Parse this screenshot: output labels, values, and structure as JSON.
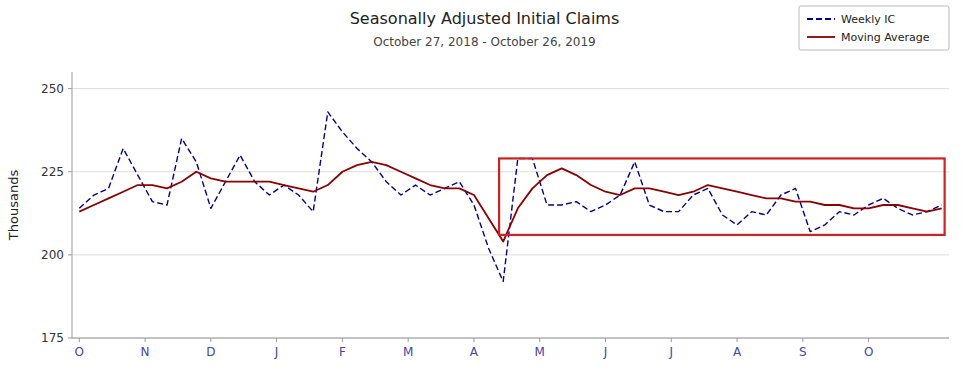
{
  "chart_data": {
    "type": "line",
    "title": "Seasonally Adjusted Initial Claims",
    "subtitle": "October 27, 2018 - October 26, 2019",
    "ylabel": "Thousands",
    "ylim": [
      175,
      255
    ],
    "yticks": [
      175,
      200,
      225,
      250
    ],
    "xlim": [
      -0.5,
      59.5
    ],
    "xticks": [
      {
        "value": 0.0,
        "label": "O"
      },
      {
        "value": 4.5,
        "label": "N"
      },
      {
        "value": 9.0,
        "label": "D"
      },
      {
        "value": 13.5,
        "label": "J"
      },
      {
        "value": 18.0,
        "label": "F"
      },
      {
        "value": 22.5,
        "label": "M"
      },
      {
        "value": 27.0,
        "label": "A"
      },
      {
        "value": 31.5,
        "label": "M"
      },
      {
        "value": 36.0,
        "label": "J"
      },
      {
        "value": 40.5,
        "label": "J"
      },
      {
        "value": 45.0,
        "label": "A"
      },
      {
        "value": 49.5,
        "label": "S"
      },
      {
        "value": 54.0,
        "label": "O"
      }
    ],
    "grid": true,
    "legend": "upper right",
    "series": [
      {
        "name": "Weekly IC",
        "color": "#00008B",
        "line_style": "dashed",
        "values": [
          214,
          218,
          220,
          232,
          224,
          216,
          215,
          235,
          228,
          214,
          222,
          230,
          222,
          218,
          221,
          218,
          213,
          243,
          237,
          232,
          228,
          222,
          218,
          221,
          218,
          220,
          222,
          215,
          202,
          192,
          229,
          229,
          215,
          215,
          216,
          213,
          215,
          218,
          228,
          215,
          213,
          213,
          218,
          220,
          212,
          209,
          213,
          212,
          218,
          220,
          207,
          209,
          213,
          212,
          215,
          217,
          214,
          212,
          213,
          215
        ]
      },
      {
        "name": "Moving Average",
        "color": "#8B0000",
        "line_style": "solid",
        "values": [
          213,
          215,
          217,
          219,
          221,
          221,
          220,
          222,
          225,
          223,
          222,
          222,
          222,
          222,
          221,
          220,
          219,
          221,
          225,
          227,
          228,
          227,
          225,
          223,
          221,
          220,
          220,
          218,
          211,
          204,
          214,
          220,
          224,
          226,
          224,
          221,
          219,
          218,
          220,
          220,
          219,
          218,
          219,
          221,
          220,
          219,
          218,
          217,
          217,
          216,
          216,
          215,
          215,
          214,
          214,
          215,
          215,
          214,
          213,
          214
        ]
      }
    ],
    "annotations": [
      {
        "type": "rect",
        "x0": 28.72,
        "x1": 59.2,
        "y0": 206,
        "y1": 229,
        "color": "#cc2222"
      }
    ]
  }
}
